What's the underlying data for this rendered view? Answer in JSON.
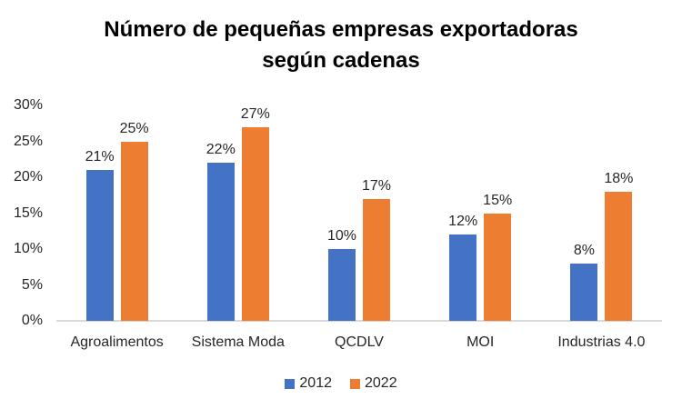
{
  "chart_data": {
    "type": "bar",
    "title": "Número de pequeñas empresas exportadoras según cadenas",
    "title_lines": [
      "Número de pequeñas empresas exportadoras",
      "según cadenas"
    ],
    "categories": [
      "Agroalimentos",
      "Sistema Moda",
      "QCDLV",
      "MOI",
      "Industrias 4.0"
    ],
    "series": [
      {
        "name": "2012",
        "color": "#4472C4",
        "values": [
          21,
          22,
          10,
          12,
          8
        ],
        "labels": [
          "21%",
          "22%",
          "10%",
          "12%",
          "8%"
        ]
      },
      {
        "name": "2022",
        "color": "#ED7D31",
        "values": [
          25,
          27,
          17,
          15,
          18
        ],
        "labels": [
          "25%",
          "27%",
          "17%",
          "15%",
          "18%"
        ]
      }
    ],
    "unit": "%",
    "y_axis": {
      "min": 0,
      "max": 30,
      "tick_values": [
        0,
        5,
        10,
        15,
        20,
        25,
        30
      ],
      "ticks": [
        "0%",
        "5%",
        "10%",
        "15%",
        "20%",
        "25%",
        "30%"
      ]
    },
    "grid": false,
    "legend": {
      "position": "bottom",
      "entries": [
        "2012",
        "2022"
      ]
    },
    "colors": {
      "axis_line": "#D9D9D9",
      "text": "#262626",
      "title_text": "#000000",
      "background": "#FFFFFF"
    }
  }
}
